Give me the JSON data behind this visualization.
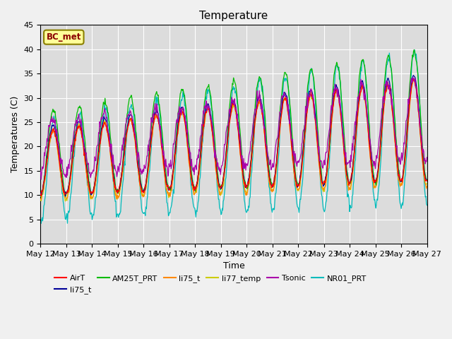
{
  "title": "Temperature",
  "xlabel": "Time",
  "ylabel": "Temperatures (C)",
  "ylim": [
    0,
    45
  ],
  "annotation_text": "BC_met",
  "annotation_color": "#8B0000",
  "annotation_bg": "#FFFF99",
  "annotation_edge": "#8B8000",
  "series_colors": {
    "AirT": "#FF0000",
    "li75_t_blue": "#000099",
    "AM25T_PRT": "#00BB00",
    "li75_t_orange": "#FF8800",
    "li77_temp": "#CCCC00",
    "Tsonic": "#AA00AA",
    "NR01_PRT": "#00BBBB"
  },
  "legend_entries": [
    {
      "label": "AirT",
      "color": "#FF0000"
    },
    {
      "label": "li75_t",
      "color": "#000099"
    },
    {
      "label": "AM25T_PRT",
      "color": "#00BB00"
    },
    {
      "label": "li75_t",
      "color": "#FF8800"
    },
    {
      "label": "li77_temp",
      "color": "#CCCC00"
    },
    {
      "label": "Tsonic",
      "color": "#AA00AA"
    },
    {
      "label": "NR01_PRT",
      "color": "#00BBBB"
    }
  ],
  "x_tick_labels": [
    "May 12",
    "May 13",
    "May 14",
    "May 15",
    "May 16",
    "May 17",
    "May 18",
    "May 19",
    "May 20",
    "May 21",
    "May 22",
    "May 23",
    "May 24",
    "May 25",
    "May 26",
    "May 27"
  ],
  "fig_bg_color": "#F0F0F0",
  "plot_bg_color": "#DCDCDC",
  "grid_color": "#FFFFFF",
  "title_fontsize": 11,
  "axis_label_fontsize": 9,
  "tick_fontsize": 8
}
